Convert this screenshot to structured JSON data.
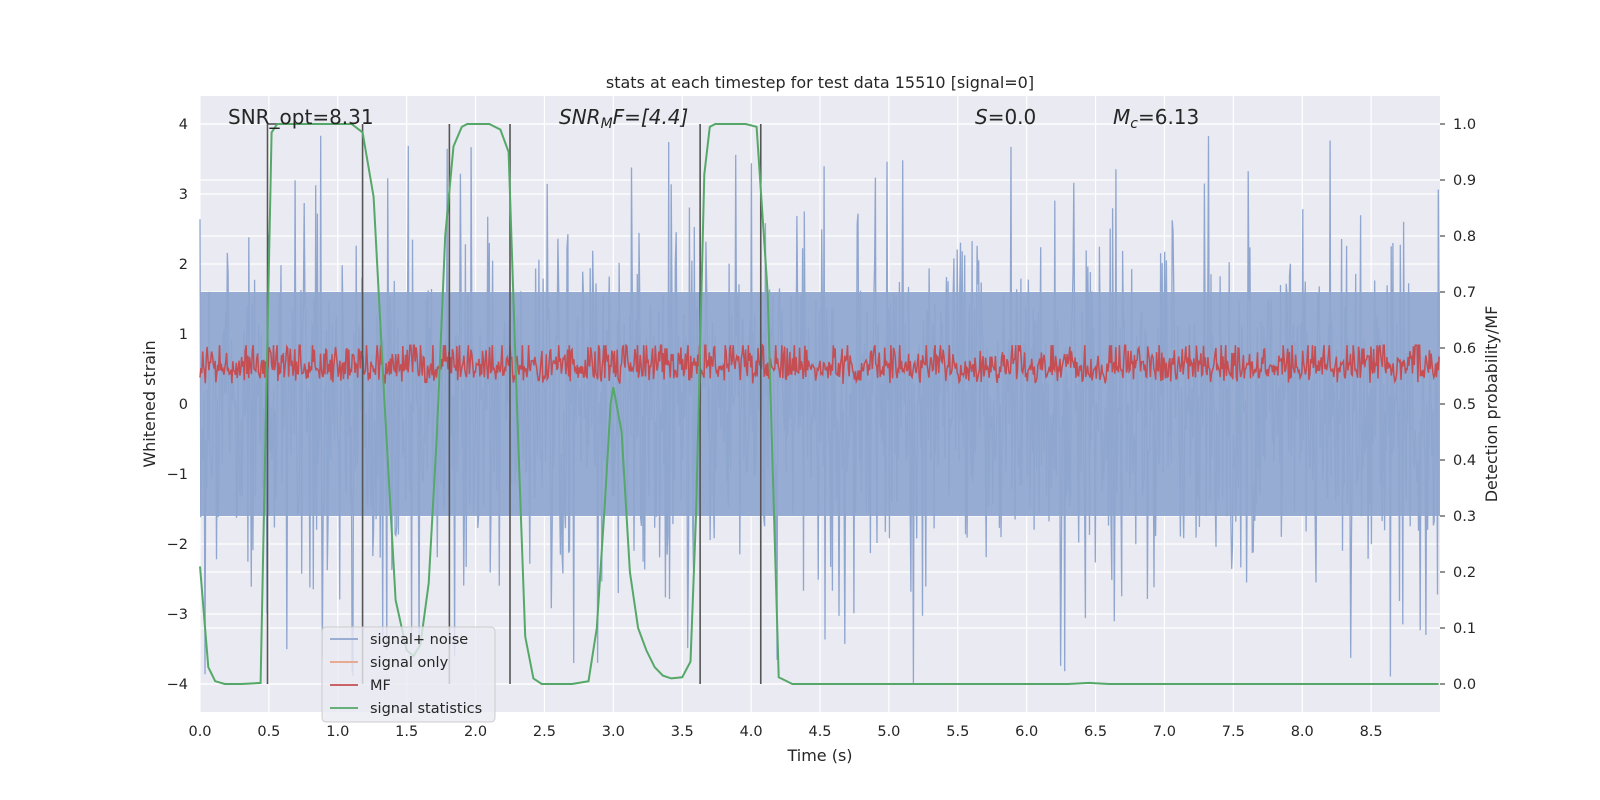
{
  "chart_data": {
    "type": "line",
    "title": "stats at each timestep for test data 15510 [signal=0]",
    "xlabel": "Time (s)",
    "ylabel_left": "Whitened strain",
    "ylabel_right": "Detection probability/MF",
    "xlim": [
      0.0,
      9.0
    ],
    "ylim_left": [
      -4.4,
      4.4
    ],
    "ylim_right": [
      -0.05,
      1.05
    ],
    "grid": true,
    "legend_position": "lower-left",
    "x_ticks": [
      "0.0",
      "0.5",
      "1.0",
      "1.5",
      "2.0",
      "2.5",
      "3.0",
      "3.5",
      "4.0",
      "4.5",
      "5.0",
      "5.5",
      "6.0",
      "6.5",
      "7.0",
      "7.5",
      "8.0",
      "8.5"
    ],
    "y_left_ticks": [
      "4",
      "3",
      "2",
      "1",
      "0",
      "−1",
      "−2",
      "−3",
      "−4"
    ],
    "y_right_ticks": [
      "1.0",
      "0.9",
      "0.8",
      "0.7",
      "0.6",
      "0.5",
      "0.4",
      "0.3",
      "0.2",
      "0.1",
      "0.0"
    ],
    "annotations": {
      "snr_opt": "SNR_opt=8.31",
      "snr_mf_main": "SNR",
      "snr_mf_sub": "M",
      "snr_mf_rest": "F=[4.4]",
      "s_main": "S",
      "s_rest": "=0.0",
      "mc_main": "M",
      "mc_sub": "c",
      "mc_rest": "=6.13"
    },
    "series": [
      {
        "name": "signal+ noise",
        "color": "#8fa6cf",
        "description_shape": "noise band",
        "typical_range": [
          -1.6,
          1.6
        ],
        "extreme_range": [
          -4.0,
          4.0
        ]
      },
      {
        "name": "signal only",
        "color": "#e8a283"
      },
      {
        "name": "MF",
        "color": "#c44e52",
        "typical_range": [
          0.1,
          0.55
        ]
      },
      {
        "name": "signal statistics",
        "color": "#55a868",
        "axis": "right",
        "x": [
          0.0,
          0.06,
          0.11,
          0.18,
          0.3,
          0.44,
          0.48,
          0.52,
          0.56,
          0.6,
          0.7,
          0.9,
          1.1,
          1.18,
          1.26,
          1.34,
          1.42,
          1.5,
          1.55,
          1.6,
          1.66,
          1.72,
          1.78,
          1.84,
          1.9,
          1.94,
          2.0,
          2.1,
          2.18,
          2.24,
          2.3,
          2.36,
          2.42,
          2.48,
          2.56,
          2.7,
          2.82,
          2.88,
          2.94,
          2.98,
          3.0,
          3.06,
          3.12,
          3.18,
          3.24,
          3.3,
          3.36,
          3.42,
          3.5,
          3.56,
          3.6,
          3.66,
          3.7,
          3.74,
          3.82,
          3.96,
          4.04,
          4.12,
          4.2,
          4.3,
          5.0,
          6.0,
          6.3,
          6.45,
          6.6,
          7.0,
          8.0,
          8.99
        ],
        "values": [
          0.21,
          0.03,
          0.005,
          0.0,
          0.0,
          0.002,
          0.5,
          0.985,
          1.0,
          1.0,
          1.0,
          1.0,
          1.0,
          0.985,
          0.87,
          0.5,
          0.15,
          0.06,
          0.05,
          0.07,
          0.18,
          0.45,
          0.8,
          0.96,
          0.995,
          1.0,
          1.0,
          1.0,
          0.99,
          0.95,
          0.5,
          0.085,
          0.01,
          0.0,
          0.0,
          0.0,
          0.005,
          0.1,
          0.33,
          0.5,
          0.53,
          0.45,
          0.2,
          0.1,
          0.06,
          0.03,
          0.015,
          0.01,
          0.012,
          0.04,
          0.3,
          0.91,
          0.995,
          1.0,
          1.0,
          1.0,
          0.995,
          0.7,
          0.012,
          0.0,
          0.0,
          0.0,
          0.0,
          0.002,
          0.0,
          0.0,
          0.0,
          0.0
        ]
      }
    ],
    "vertical_markers": [
      0.49,
      1.18,
      1.81,
      2.25,
      3.63,
      4.07
    ],
    "legend": [
      "signal+ noise",
      "signal only",
      "MF",
      "signal statistics"
    ]
  }
}
